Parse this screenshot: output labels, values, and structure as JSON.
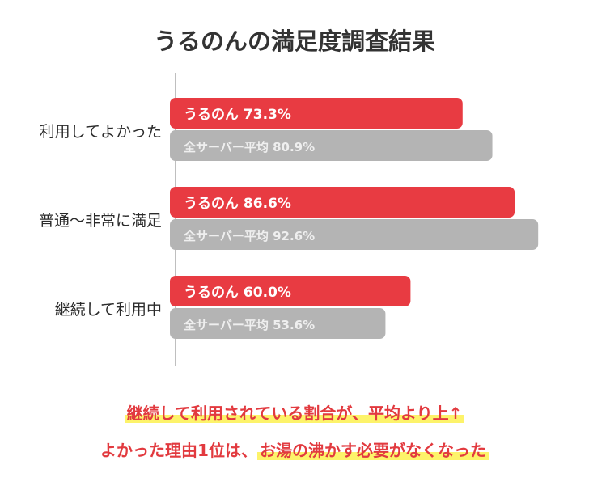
{
  "title": "うるのんの満足度調査結果",
  "chart_data": {
    "type": "bar",
    "orientation": "horizontal",
    "categories": [
      "利用してよかった",
      "普通〜非常に満足",
      "継続して利用中"
    ],
    "series": [
      {
        "name": "うるのん",
        "values": [
          73.3,
          86.6,
          60.0
        ],
        "labels": [
          "うるのん 73.3%",
          "うるのん 86.6%",
          "うるのん 60.0%"
        ]
      },
      {
        "name": "全サーバー平均",
        "values": [
          80.9,
          92.6,
          53.6
        ],
        "labels": [
          "全サーバー平均 80.9%",
          "全サーバー平均 92.6%",
          "全サーバー平均 53.6%"
        ]
      }
    ],
    "xlim": [
      0,
      100
    ],
    "colors": [
      "#e83b42",
      "#b4b4b4"
    ]
  },
  "conclusion": {
    "line1": "継続して利用されている割合が、平均より上↑",
    "line2_prefix": "よかった理由1位は、",
    "line2_highlight": "お湯の沸かす必要がなくなった"
  }
}
